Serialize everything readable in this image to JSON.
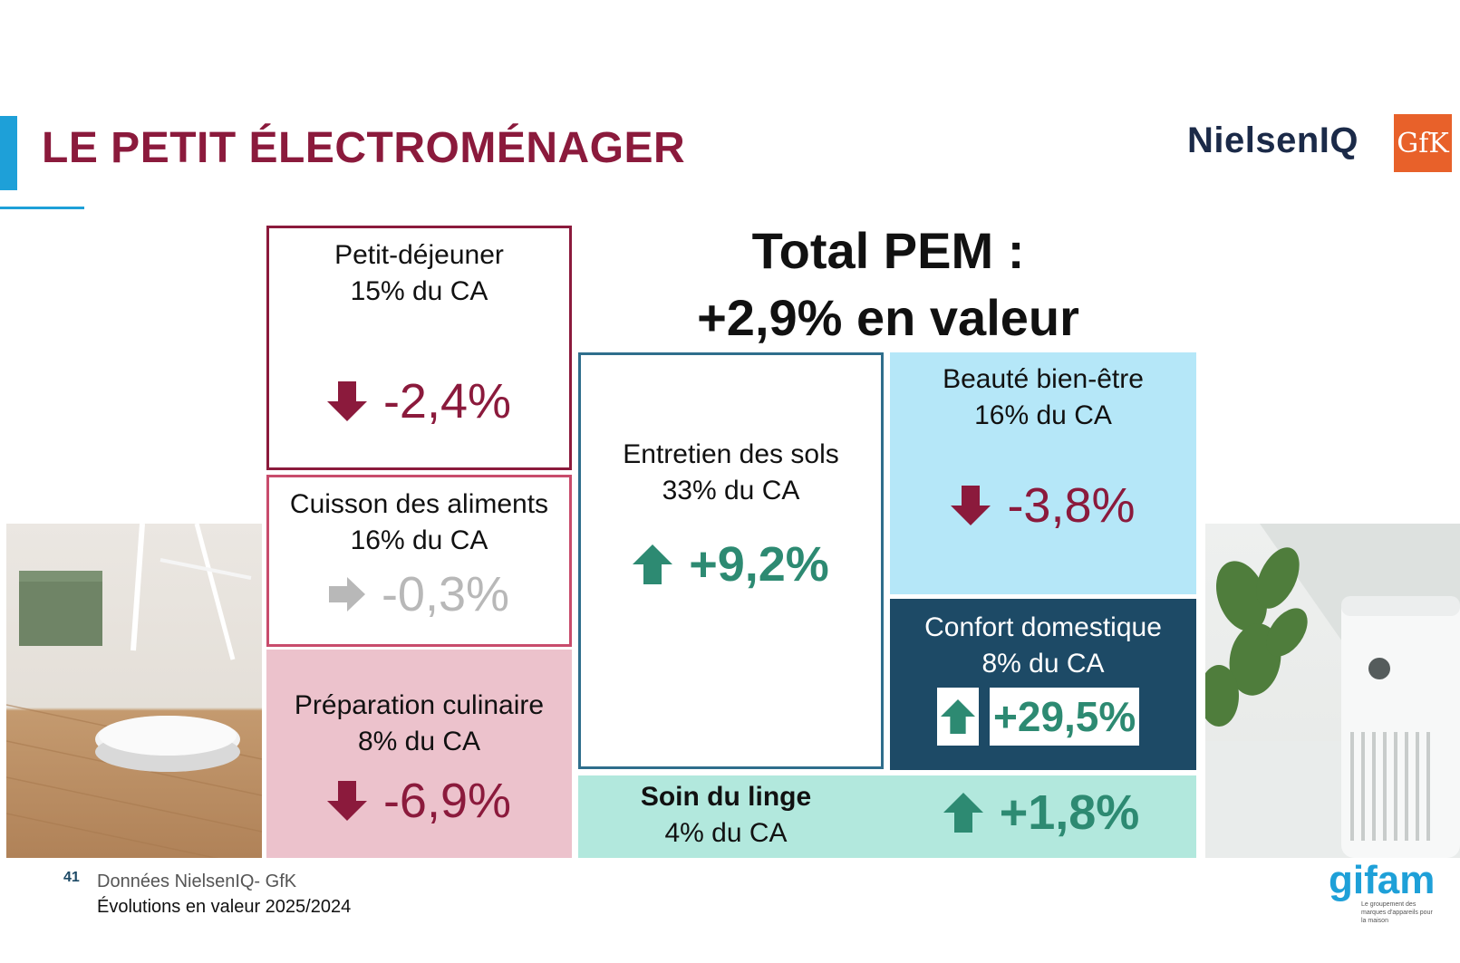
{
  "header": {
    "title": "LE PETIT ÉLECTROMÉNAGER",
    "logo_niq": "NielsenIQ",
    "logo_gfk": "GfK"
  },
  "headline": {
    "line1": "Total PEM :",
    "line2": "+2,9% en valeur"
  },
  "colors": {
    "negative": "#8b1a3c",
    "positive": "#2d8a72",
    "neutral": "#b8b8b8",
    "accent": "#1ea0d8"
  },
  "segments": {
    "petit_dejeuner": {
      "name": "Petit-déjeuner",
      "share": "15% du CA",
      "change": "-2,4%",
      "trend": "down"
    },
    "cuisson": {
      "name": "Cuisson des aliments",
      "share": "16% du CA",
      "change": "-0,3%",
      "trend": "flat"
    },
    "preparation": {
      "name": "Préparation culinaire",
      "share": "8% du CA",
      "change": "-6,9%",
      "trend": "down"
    },
    "entretien": {
      "name": "Entretien des sols",
      "share": "33% du CA",
      "change": "+9,2%",
      "trend": "up"
    },
    "beaute": {
      "name": "Beauté bien-être",
      "share": "16% du CA",
      "change": "-3,8%",
      "trend": "down"
    },
    "confort": {
      "name": "Confort domestique",
      "share": "8% du CA",
      "change": "+29,5%",
      "trend": "up"
    },
    "soin_linge": {
      "name": "Soin du linge",
      "share": "4% du CA",
      "change": "+1,8%",
      "trend": "up"
    }
  },
  "footer": {
    "page_number": "41",
    "source": "Données NielsenIQ- GfK",
    "note": "Évolutions en valeur 2025/2024",
    "logo_gifam": "gifam",
    "logo_gifam_tagline": "Le groupement des marques d'appareils pour la maison"
  }
}
